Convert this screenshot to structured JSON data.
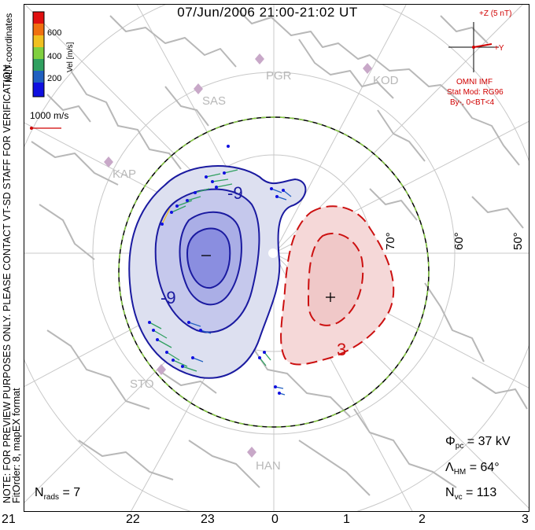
{
  "title": "07/Jun/2006 21:00-21:02 UT",
  "colorbar": {
    "ticks": [
      "600",
      "400",
      "200"
    ],
    "label": "Vel [m/s]",
    "colors": [
      "#e01010",
      "#f07010",
      "#f0c020",
      "#80d040",
      "#30a060",
      "#2060c0",
      "#1010e0"
    ]
  },
  "coordinates_label": "MLT coordinates",
  "velocity_scale": "1000 m/s",
  "imf": {
    "z_label": "+Z (5 nT)",
    "y_label": "+Y",
    "source": "OMNI IMF",
    "model": "Stat Mod: RG96",
    "condition": "By-, 0<BT<4"
  },
  "watermark": "NOTE: FOR PREVIEW PURPOSES ONLY. PLEASE CONTACT VT-SD STAFF FOR VERIFICATION.",
  "fit_info": "FitOrder: 8, mapEX format",
  "stations": [
    "PGR",
    "KOD",
    "SAS",
    "KAP",
    "STO",
    "HAN"
  ],
  "latitudes": [
    "70°",
    "60°",
    "50°"
  ],
  "mlt_ticks": [
    "21",
    "22",
    "23",
    "0",
    "1",
    "2",
    "3"
  ],
  "contour_labels": {
    "negative": "-9",
    "negative2": "-9",
    "positive": "3"
  },
  "markers": {
    "min": "−",
    "max": "+"
  },
  "stats": {
    "phi_pc_symbol": "Φ",
    "phi_pc_sub": "pc",
    "phi_pc_value": "= 37 kV",
    "lambda_symbol": "Λ",
    "lambda_sub": "HM",
    "lambda_value": "= 64°",
    "nvc_symbol": "N",
    "nvc_sub": "vc",
    "nvc_value": "= 113",
    "nrads_symbol": "N",
    "nrads_sub": "rads",
    "nrads_value": "= 7"
  },
  "colors": {
    "negative_cell": "#1a1aa0",
    "positive_cell": "#cc1010",
    "boundary_dash": "#88cc44",
    "coastline": "#b8b8b8",
    "grid": "#c8c8c8",
    "station": "#c8a8c8"
  }
}
